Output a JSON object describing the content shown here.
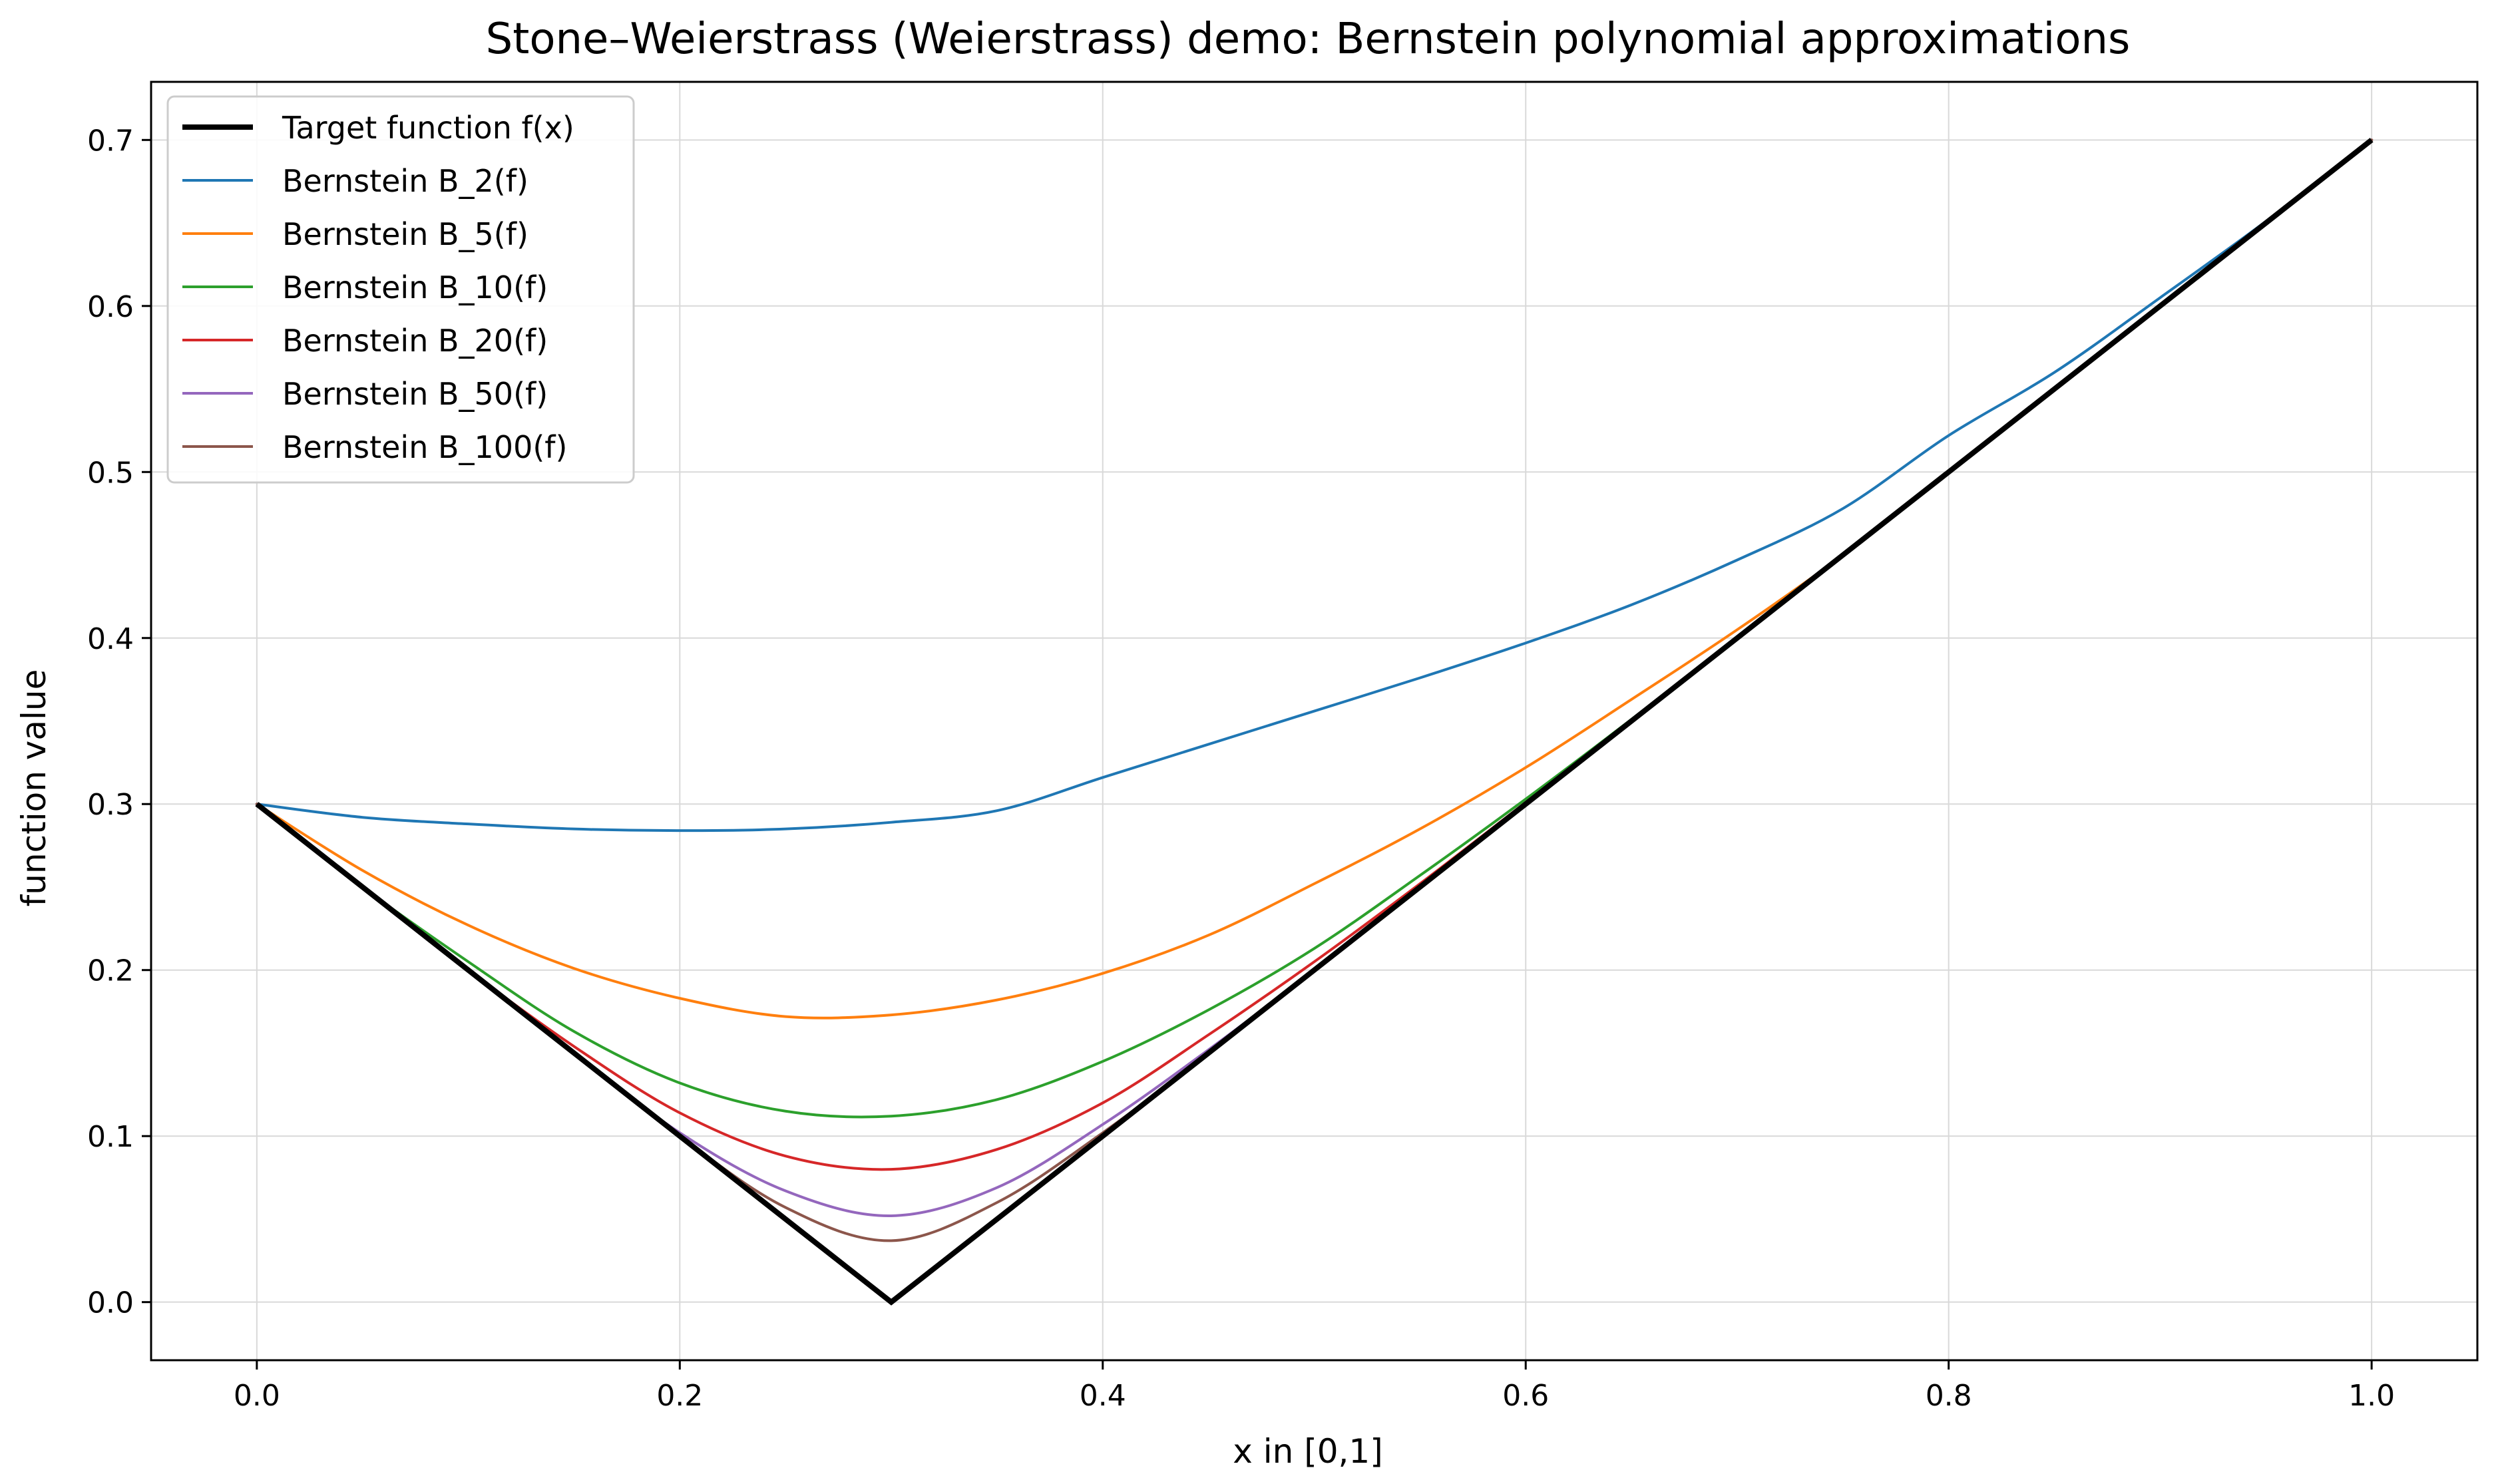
{
  "chart_data": {
    "type": "line",
    "title": "Stone–Weierstrass (Weierstrass) demo: Bernstein polynomial approximations",
    "xlabel": "x in [0,1]",
    "ylabel": "function value",
    "xlim": [
      -0.05,
      1.05
    ],
    "ylim": [
      -0.035,
      0.735
    ],
    "xticks": [
      0.0,
      0.2,
      0.4,
      0.6,
      0.8,
      1.0
    ],
    "xtick_labels": [
      "0.0",
      "0.2",
      "0.4",
      "0.6",
      "0.8",
      "1.0"
    ],
    "yticks": [
      0.0,
      0.1,
      0.2,
      0.3,
      0.4,
      0.5,
      0.6,
      0.7
    ],
    "ytick_labels": [
      "0.0",
      "0.1",
      "0.2",
      "0.3",
      "0.4",
      "0.5",
      "0.6",
      "0.7"
    ],
    "grid": true,
    "legend_position": "upper-left",
    "target": {
      "name": "Target function f(x)",
      "color": "#000000",
      "x": [
        0.0,
        0.3,
        1.0
      ],
      "y": [
        0.3,
        0.0,
        0.7
      ]
    },
    "series": [
      {
        "name": "Bernstein B_2(f)",
        "color": "#1f77b4",
        "x": [
          0.0,
          0.05,
          0.1,
          0.15,
          0.2,
          0.25,
          0.3,
          0.35,
          0.4,
          0.45,
          0.5,
          0.55,
          0.6,
          0.65,
          0.7,
          0.75,
          0.8,
          0.85,
          0.9,
          0.95,
          1.0
        ],
        "y": [
          0.3,
          0.292,
          0.288,
          0.285,
          0.284,
          0.285,
          0.289,
          0.296,
          0.316,
          0.336,
          0.356,
          0.376,
          0.397,
          0.42,
          0.447,
          0.478,
          0.522,
          0.56,
          0.605,
          0.651,
          0.7
        ]
      },
      {
        "name": "Bernstein B_5(f)",
        "color": "#ff7f0e",
        "x": [
          0.0,
          0.05,
          0.1,
          0.15,
          0.2,
          0.25,
          0.3,
          0.35,
          0.4,
          0.45,
          0.5,
          0.55,
          0.6,
          0.65,
          0.7,
          0.75,
          0.8,
          0.85,
          0.9,
          0.95,
          1.0
        ],
        "y": [
          0.3,
          0.26,
          0.227,
          0.201,
          0.183,
          0.172,
          0.173,
          0.182,
          0.198,
          0.221,
          0.252,
          0.285,
          0.322,
          0.363,
          0.405,
          0.45,
          0.5,
          0.55,
          0.6,
          0.65,
          0.7
        ]
      },
      {
        "name": "Bernstein B_10(f)",
        "color": "#2ca02c",
        "x": [
          0.0,
          0.05,
          0.1,
          0.15,
          0.2,
          0.25,
          0.3,
          0.35,
          0.4,
          0.45,
          0.5,
          0.55,
          0.6,
          0.65,
          0.7,
          0.75,
          0.8,
          0.85,
          0.9,
          0.95,
          1.0
        ],
        "y": [
          0.3,
          0.25,
          0.205,
          0.163,
          0.132,
          0.115,
          0.112,
          0.122,
          0.145,
          0.176,
          0.213,
          0.257,
          0.303,
          0.351,
          0.4,
          0.45,
          0.5,
          0.55,
          0.6,
          0.65,
          0.7
        ]
      },
      {
        "name": "Bernstein B_20(f)",
        "color": "#d62728",
        "x": [
          0.0,
          0.05,
          0.1,
          0.15,
          0.2,
          0.25,
          0.3,
          0.35,
          0.4,
          0.45,
          0.5,
          0.55,
          0.6,
          0.65,
          0.7,
          0.75,
          0.8,
          0.85,
          0.9,
          0.95,
          1.0
        ],
        "y": [
          0.3,
          0.25,
          0.2,
          0.154,
          0.114,
          0.088,
          0.08,
          0.092,
          0.12,
          0.161,
          0.205,
          0.252,
          0.301,
          0.35,
          0.4,
          0.45,
          0.5,
          0.55,
          0.6,
          0.65,
          0.7
        ]
      },
      {
        "name": "Bernstein B_50(f)",
        "color": "#9467bd",
        "x": [
          0.0,
          0.05,
          0.1,
          0.15,
          0.2,
          0.25,
          0.3,
          0.35,
          0.4,
          0.45,
          0.5,
          0.55,
          0.6,
          0.65,
          0.7,
          0.75,
          0.8,
          0.85,
          0.9,
          0.95,
          1.0
        ],
        "y": [
          0.3,
          0.25,
          0.2,
          0.15,
          0.102,
          0.067,
          0.052,
          0.069,
          0.107,
          0.152,
          0.2,
          0.25,
          0.3,
          0.35,
          0.4,
          0.45,
          0.5,
          0.55,
          0.6,
          0.65,
          0.7
        ]
      },
      {
        "name": "Bernstein B_100(f)",
        "color": "#8c564b",
        "x": [
          0.0,
          0.05,
          0.1,
          0.15,
          0.2,
          0.25,
          0.3,
          0.35,
          0.4,
          0.45,
          0.5,
          0.55,
          0.6,
          0.65,
          0.7,
          0.75,
          0.8,
          0.85,
          0.9,
          0.95,
          1.0
        ],
        "y": [
          0.3,
          0.25,
          0.2,
          0.15,
          0.1,
          0.057,
          0.037,
          0.06,
          0.102,
          0.15,
          0.2,
          0.25,
          0.3,
          0.35,
          0.4,
          0.45,
          0.5,
          0.55,
          0.6,
          0.65,
          0.7
        ]
      }
    ]
  }
}
